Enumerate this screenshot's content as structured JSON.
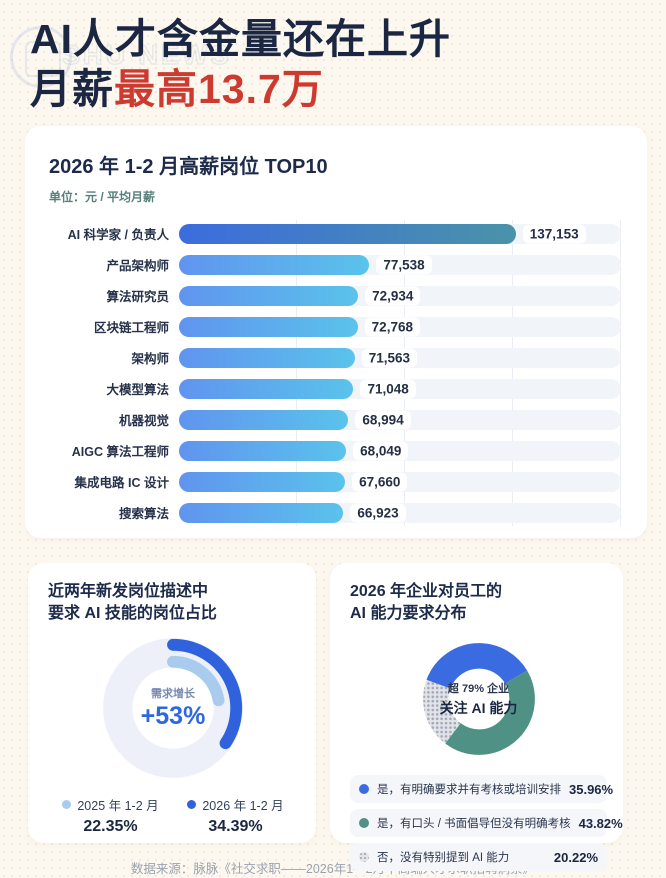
{
  "page": {
    "title_line1": "AI人才含金量还在上升",
    "title_line2_dark": "月薪",
    "title_line2_red": "最高13.7万",
    "watermark_text": "SHU NEWS",
    "footer": "数据来源：脉脉《社交求职——2026年1—2月中高端人才求职招聘洞察》"
  },
  "colors": {
    "accent_red": "#CC3A30",
    "navy": "#1B2642",
    "bar_top_start": "#3C6CDE",
    "bar_top_end": "#4A93A9",
    "bar_start": "#6094EF",
    "bar_end": "#5AC3EB",
    "blue": "#2F62DC",
    "light_blue": "#A9CBEE",
    "teal": "#4F9184",
    "gray": "#C3C7D0",
    "track": "#F1F4F9",
    "ring_track": "#EDF0F8"
  },
  "chart_data": [
    {
      "type": "bar",
      "orientation": "horizontal",
      "title": "2026 年 1-2 月高薪岗位 TOP10",
      "unit_label": "单位：元 / 平均月薪",
      "xlim": [
        0,
        180000
      ],
      "grid": "vertical, quarter intervals",
      "categories": [
        "AI 科学家 / 负责人",
        "产品架构师",
        "算法研究员",
        "区块链工程师",
        "架构师",
        "大模型算法",
        "机器视觉",
        "AIGC 算法工程师",
        "集成电路 IC 设计",
        "搜索算法"
      ],
      "values": [
        137153,
        77538,
        72934,
        72768,
        71563,
        71048,
        68994,
        68049,
        67660,
        66923
      ],
      "value_labels": [
        "137,153",
        "77,538",
        "72,934",
        "72,768",
        "71,563",
        "71,048",
        "68,994",
        "68,049",
        "67,660",
        "66,923"
      ]
    },
    {
      "type": "area",
      "subtype": "concentric-arc-rings",
      "title_line1": "近两年新发岗位描述中",
      "title_line2": "要求 AI 技能的岗位占比",
      "center_label": "需求增长",
      "center_value": "+53%",
      "start_angle_deg": 0,
      "series": [
        {
          "name": "2025 年 1-2 月",
          "value": 22.35,
          "display": "22.35%",
          "color": "#A9CBEE",
          "ring": "inner"
        },
        {
          "name": "2026 年 1-2 月",
          "value": 34.39,
          "display": "34.39%",
          "color": "#2F62DC",
          "ring": "outer"
        }
      ]
    },
    {
      "type": "pie",
      "subtype": "donut",
      "title_line1": "2026 年企业对员工的",
      "title_line2": "AI 能力要求分布",
      "center_line1": "超 79% 企业",
      "center_line2": "关注 AI 能力",
      "start_angle_deg": -70,
      "slices": [
        {
          "label": "是，有明确要求并有考核或培训安排",
          "value": 35.96,
          "display": "35.96%",
          "color": "#3B6BE0",
          "pattern": "solid"
        },
        {
          "label": "是，有口头 / 书面倡导但没有明确考核",
          "value": 43.82,
          "display": "43.82%",
          "color": "#4F9184",
          "pattern": "solid"
        },
        {
          "label": "否，没有特别提到 AI 能力",
          "value": 20.22,
          "display": "20.22%",
          "color": "#C3C7D0",
          "pattern": "dots"
        }
      ]
    }
  ]
}
